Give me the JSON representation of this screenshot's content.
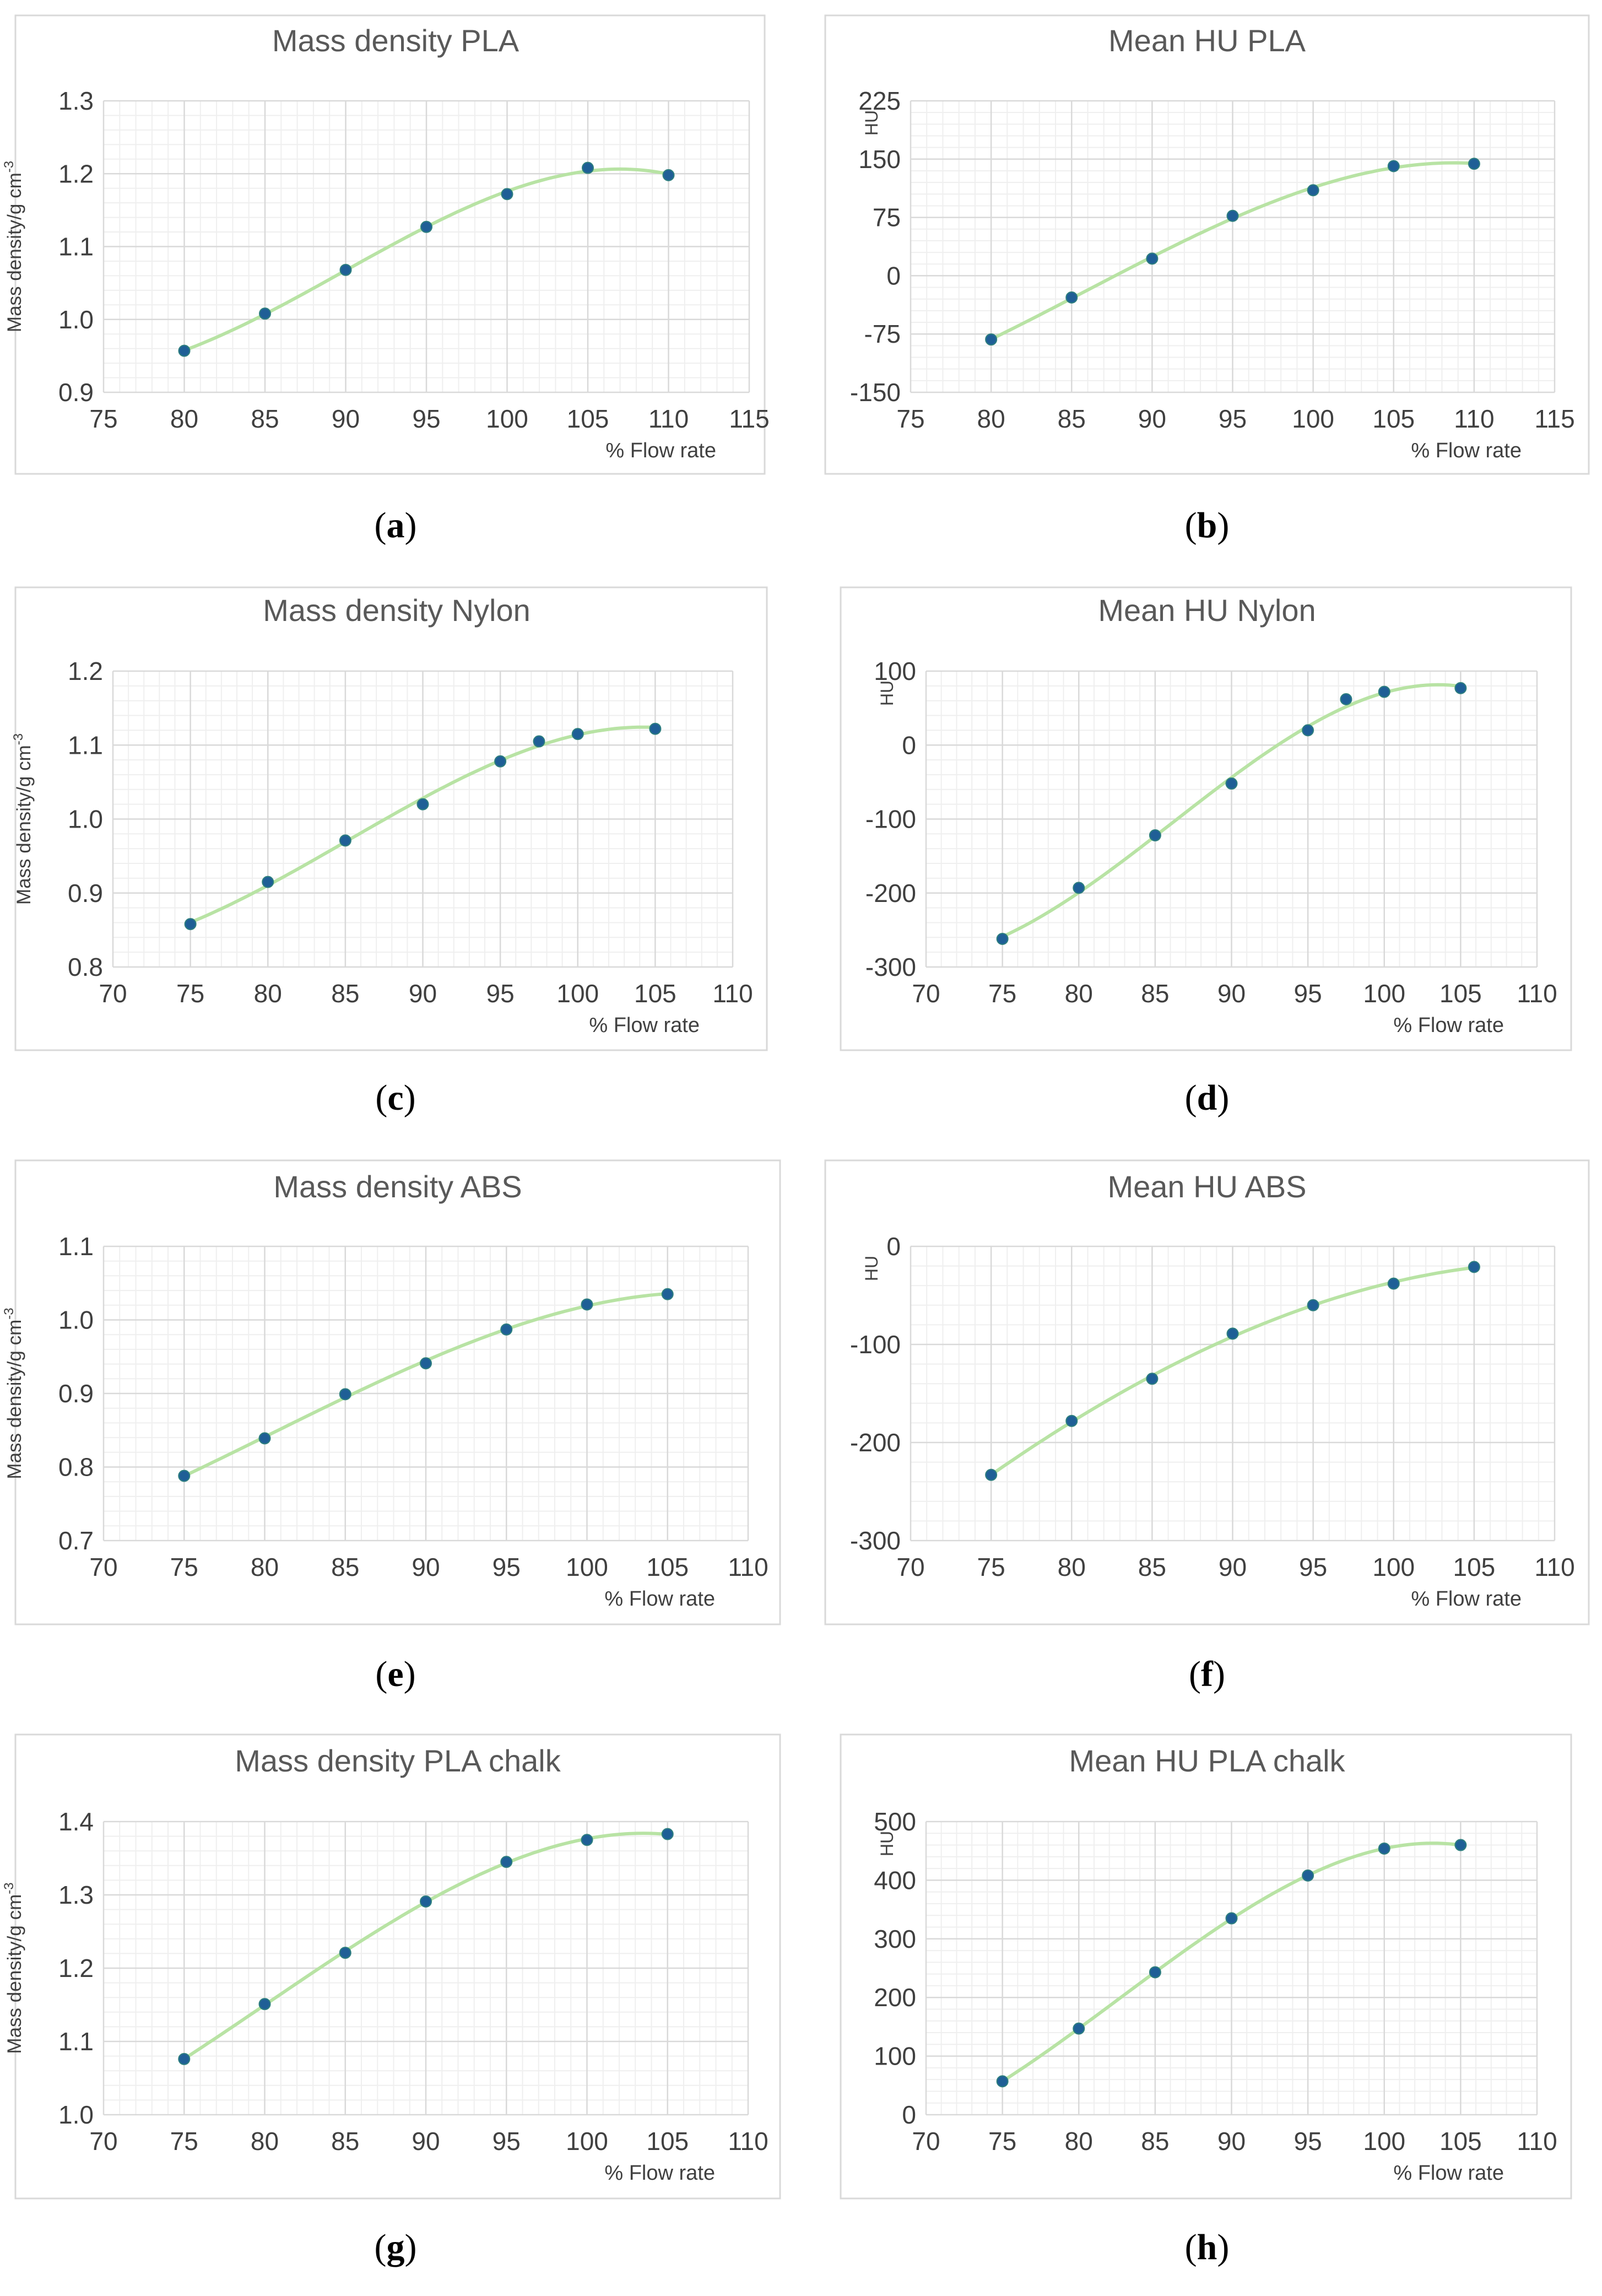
{
  "style": {
    "panel_border": "#d9d9d9",
    "gridline_major": "#d9d9d9",
    "gridline_minor": "#efefef",
    "fit_line": "#b8e3a4",
    "point_fill": "#1f5f96",
    "point_stroke": "#2e7f7f",
    "title_color": "#595959",
    "tick_color": "#404040",
    "label_color": "#404040",
    "caption_color": "#000000"
  },
  "chart_data": [
    {
      "type": "scatter",
      "panel": "a",
      "caption": "a",
      "title": "Mass density PLA",
      "xlabel": "% Flow rate",
      "ylabel": "Mass density/g cm",
      "ylabel_sup": "-3",
      "xlim": [
        75,
        115
      ],
      "xticks": [
        75,
        80,
        85,
        90,
        95,
        100,
        105,
        110,
        115
      ],
      "xtick_labels": [
        "75",
        "80",
        "85",
        "90",
        "95",
        "100",
        "105",
        "110",
        "115"
      ],
      "ylim": [
        0.9,
        1.3
      ],
      "yticks": [
        0.9,
        1.0,
        1.1,
        1.2,
        1.3
      ],
      "ytick_labels": [
        "0.9",
        "1.0",
        "1.1",
        "1.2",
        "1.3"
      ],
      "x_minor": 1,
      "y_minor": 0.02,
      "legend": "none",
      "trendline": "polynomial",
      "x": [
        80,
        85,
        90,
        95,
        100,
        105,
        110
      ],
      "y": [
        0.957,
        1.008,
        1.068,
        1.127,
        1.172,
        1.208,
        1.198
      ]
    },
    {
      "type": "scatter",
      "panel": "b",
      "caption": "b",
      "title": "Mean HU PLA",
      "xlabel": "% Flow rate",
      "ylabel": "HU",
      "ylabel_sup": "",
      "xlim": [
        75,
        115
      ],
      "xticks": [
        75,
        80,
        85,
        90,
        95,
        100,
        105,
        110,
        115
      ],
      "xtick_labels": [
        "75",
        "80",
        "85",
        "90",
        "95",
        "100",
        "105",
        "110",
        "115"
      ],
      "ylim": [
        -150,
        225
      ],
      "yticks": [
        -150,
        -75,
        0,
        75,
        150,
        225
      ],
      "ytick_labels": [
        "-150",
        "-75",
        "0",
        "75",
        "150",
        "225"
      ],
      "x_minor": 1,
      "y_minor": 15,
      "legend": "none",
      "trendline": "polynomial",
      "x": [
        80,
        85,
        90,
        95,
        100,
        105,
        110
      ],
      "y": [
        -82,
        -28,
        22,
        77,
        110,
        141,
        144
      ]
    },
    {
      "type": "scatter",
      "panel": "c",
      "caption": "c",
      "title": "Mass density Nylon",
      "xlabel": "% Flow rate",
      "ylabel": "Mass density/g cm",
      "ylabel_sup": "-3",
      "xlim": [
        70,
        110
      ],
      "xticks": [
        70,
        75,
        80,
        85,
        90,
        95,
        100,
        105,
        110
      ],
      "xtick_labels": [
        "70",
        "75",
        "80",
        "85",
        "90",
        "95",
        "100",
        "105",
        "110"
      ],
      "ylim": [
        0.8,
        1.2
      ],
      "yticks": [
        0.8,
        0.9,
        1.0,
        1.1,
        1.2
      ],
      "ytick_labels": [
        "0.8",
        "0.9",
        "1.0",
        "1.1",
        "1.2"
      ],
      "x_minor": 1,
      "y_minor": 0.02,
      "legend": "none",
      "trendline": "polynomial",
      "x": [
        75,
        80,
        85,
        90,
        95,
        97.5,
        100,
        105
      ],
      "y": [
        0.858,
        0.915,
        0.971,
        1.02,
        1.078,
        1.105,
        1.115,
        1.122
      ]
    },
    {
      "type": "scatter",
      "panel": "d",
      "caption": "d",
      "title": "Mean HU Nylon",
      "xlabel": "% Flow rate",
      "ylabel": "HU",
      "ylabel_sup": "",
      "xlim": [
        70,
        110
      ],
      "xticks": [
        70,
        75,
        80,
        85,
        90,
        95,
        100,
        105,
        110
      ],
      "xtick_labels": [
        "70",
        "75",
        "80",
        "85",
        "90",
        "95",
        "100",
        "105",
        "110"
      ],
      "ylim": [
        -300,
        100
      ],
      "yticks": [
        -300,
        -200,
        -100,
        0,
        100
      ],
      "ytick_labels": [
        "-300",
        "-200",
        "-100",
        "0",
        "100"
      ],
      "x_minor": 1,
      "y_minor": 20,
      "legend": "none",
      "trendline": "polynomial",
      "x": [
        75,
        80,
        85,
        90,
        95,
        97.5,
        100,
        105
      ],
      "y": [
        -262,
        -193,
        -122,
        -52,
        20,
        62,
        72,
        77
      ]
    },
    {
      "type": "scatter",
      "panel": "e",
      "caption": "e",
      "title": "Mass density ABS",
      "xlabel": "% Flow rate",
      "ylabel": "Mass density/g cm",
      "ylabel_sup": "-3",
      "xlim": [
        70,
        110
      ],
      "xticks": [
        70,
        75,
        80,
        85,
        90,
        95,
        100,
        105,
        110
      ],
      "xtick_labels": [
        "70",
        "75",
        "80",
        "85",
        "90",
        "95",
        "100",
        "105",
        "110"
      ],
      "ylim": [
        0.7,
        1.1
      ],
      "yticks": [
        0.7,
        0.8,
        0.9,
        1.0,
        1.1
      ],
      "ytick_labels": [
        "0.7",
        "0.8",
        "0.9",
        "1.0",
        "1.1"
      ],
      "x_minor": 1,
      "y_minor": 0.02,
      "legend": "none",
      "trendline": "polynomial",
      "x": [
        75,
        80,
        85,
        90,
        95,
        100,
        105
      ],
      "y": [
        0.788,
        0.839,
        0.899,
        0.941,
        0.987,
        1.021,
        1.035
      ]
    },
    {
      "type": "scatter",
      "panel": "f",
      "caption": "f",
      "title": "Mean HU ABS",
      "xlabel": "% Flow rate",
      "ylabel": "HU",
      "ylabel_sup": "",
      "xlim": [
        70,
        110
      ],
      "xticks": [
        70,
        75,
        80,
        85,
        90,
        95,
        100,
        105,
        110
      ],
      "xtick_labels": [
        "70",
        "75",
        "80",
        "85",
        "90",
        "95",
        "100",
        "105",
        "110"
      ],
      "ylim": [
        -300,
        0
      ],
      "yticks": [
        -300,
        -200,
        -100,
        0
      ],
      "ytick_labels": [
        "-300",
        "-200",
        "-100",
        "0"
      ],
      "x_minor": 1,
      "y_minor": 20,
      "legend": "none",
      "trendline": "polynomial",
      "x": [
        75,
        80,
        85,
        90,
        95,
        100,
        105
      ],
      "y": [
        -233,
        -178,
        -135,
        -89,
        -60,
        -38,
        -21
      ]
    },
    {
      "type": "scatter",
      "panel": "g",
      "caption": "g",
      "title": "Mass density PLA chalk",
      "xlabel": "% Flow rate",
      "ylabel": "Mass density/g cm",
      "ylabel_sup": "-3",
      "xlim": [
        70,
        110
      ],
      "xticks": [
        70,
        75,
        80,
        85,
        90,
        95,
        100,
        105,
        110
      ],
      "xtick_labels": [
        "70",
        "75",
        "80",
        "85",
        "90",
        "95",
        "100",
        "105",
        "110"
      ],
      "ylim": [
        1.0,
        1.4
      ],
      "yticks": [
        1.0,
        1.1,
        1.2,
        1.3,
        1.4
      ],
      "ytick_labels": [
        "1.0",
        "1.1",
        "1.2",
        "1.3",
        "1.4"
      ],
      "x_minor": 1,
      "y_minor": 0.02,
      "legend": "none",
      "trendline": "polynomial",
      "x": [
        75,
        80,
        85,
        90,
        95,
        100,
        105
      ],
      "y": [
        1.076,
        1.151,
        1.221,
        1.291,
        1.345,
        1.375,
        1.383
      ]
    },
    {
      "type": "scatter",
      "panel": "h",
      "caption": "h",
      "title": "Mean HU PLA chalk",
      "xlabel": "% Flow rate",
      "ylabel": "HU",
      "ylabel_sup": "",
      "xlim": [
        70,
        110
      ],
      "xticks": [
        70,
        75,
        80,
        85,
        90,
        95,
        100,
        105,
        110
      ],
      "xtick_labels": [
        "70",
        "75",
        "80",
        "85",
        "90",
        "95",
        "100",
        "105",
        "110"
      ],
      "ylim": [
        0,
        500
      ],
      "yticks": [
        0,
        100,
        200,
        300,
        400,
        500
      ],
      "ytick_labels": [
        "0",
        "100",
        "200",
        "300",
        "400",
        "500"
      ],
      "x_minor": 1,
      "y_minor": 20,
      "legend": "none",
      "trendline": "polynomial",
      "x": [
        75,
        80,
        85,
        90,
        95,
        100,
        105
      ],
      "y": [
        57,
        147,
        243,
        335,
        408,
        454,
        460
      ]
    }
  ]
}
